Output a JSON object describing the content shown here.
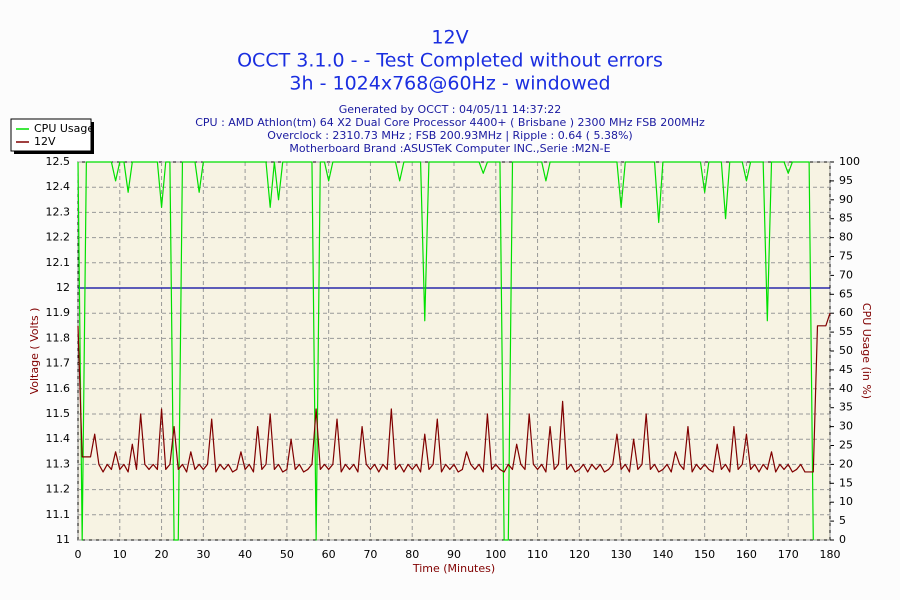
{
  "chart_data": {
    "type": "line",
    "title": "12V",
    "title_lines": [
      "OCCT 3.1.0 -  - Test Completed without errors",
      "3h - 1024x768@60Hz - windowed"
    ],
    "subtitle_lines": [
      "Generated by OCCT : 04/05/11 14:37:22",
      "CPU : AMD Athlon(tm) 64 X2 Dual Core Processor 4400+ ( Brisbane ) 2300 MHz FSB 200MHz",
      "Overclock : 2310.73 MHz ; FSB 200.93MHz | Ripple : 0.64 ( 5.38%)",
      "Motherboard Brand :ASUSTeK Computer INC.,Serie :M2N-E"
    ],
    "xlabel": "Time (Minutes)",
    "ylabel": "Voltage ( Volts )",
    "y2label": "CPU Usage (in %)",
    "x": [
      0,
      1,
      2,
      3,
      4,
      5,
      6,
      7,
      8,
      9,
      10,
      11,
      12,
      13,
      14,
      15,
      16,
      17,
      18,
      19,
      20,
      21,
      22,
      23,
      24,
      25,
      26,
      27,
      28,
      29,
      30,
      31,
      32,
      33,
      34,
      35,
      36,
      37,
      38,
      39,
      40,
      41,
      42,
      43,
      44,
      45,
      46,
      47,
      48,
      49,
      50,
      51,
      52,
      53,
      54,
      55,
      56,
      57,
      58,
      59,
      60,
      61,
      62,
      63,
      64,
      65,
      66,
      67,
      68,
      69,
      70,
      71,
      72,
      73,
      74,
      75,
      76,
      77,
      78,
      79,
      80,
      81,
      82,
      83,
      84,
      85,
      86,
      87,
      88,
      89,
      90,
      91,
      92,
      93,
      94,
      95,
      96,
      97,
      98,
      99,
      100,
      101,
      102,
      103,
      104,
      105,
      106,
      107,
      108,
      109,
      110,
      111,
      112,
      113,
      114,
      115,
      116,
      117,
      118,
      119,
      120,
      121,
      122,
      123,
      124,
      125,
      126,
      127,
      128,
      129,
      130,
      131,
      132,
      133,
      134,
      135,
      136,
      137,
      138,
      139,
      140,
      141,
      142,
      143,
      144,
      145,
      146,
      147,
      148,
      149,
      150,
      151,
      152,
      153,
      154,
      155,
      156,
      157,
      158,
      159,
      160,
      161,
      162,
      163,
      164,
      165,
      166,
      167,
      168,
      169,
      170,
      171,
      172,
      173,
      174,
      175,
      176,
      177,
      178,
      179,
      180
    ],
    "series": [
      {
        "name": "CPU Usage",
        "color": "#00e000",
        "axis": "y2",
        "values": [
          100,
          0,
          100,
          100,
          100,
          100,
          100,
          100,
          100,
          95,
          100,
          100,
          92,
          100,
          100,
          100,
          100,
          100,
          100,
          100,
          88,
          100,
          100,
          0,
          0,
          100,
          100,
          100,
          100,
          92,
          100,
          100,
          100,
          100,
          100,
          100,
          100,
          100,
          100,
          100,
          100,
          100,
          100,
          100,
          100,
          100,
          88,
          100,
          90,
          100,
          100,
          100,
          100,
          100,
          100,
          100,
          100,
          0,
          100,
          100,
          95,
          100,
          100,
          100,
          100,
          100,
          100,
          100,
          100,
          100,
          100,
          100,
          100,
          100,
          100,
          100,
          100,
          95,
          100,
          100,
          100,
          100,
          100,
          58,
          100,
          100,
          100,
          100,
          100,
          100,
          100,
          100,
          100,
          100,
          100,
          100,
          100,
          97,
          100,
          100,
          100,
          100,
          0,
          0,
          100,
          100,
          100,
          100,
          100,
          100,
          100,
          100,
          95,
          100,
          100,
          100,
          100,
          100,
          100,
          100,
          100,
          100,
          100,
          100,
          100,
          100,
          100,
          100,
          100,
          100,
          88,
          100,
          100,
          100,
          100,
          100,
          100,
          100,
          100,
          84,
          100,
          100,
          100,
          100,
          100,
          100,
          100,
          100,
          100,
          100,
          92,
          100,
          100,
          100,
          100,
          85,
          100,
          100,
          100,
          100,
          95,
          100,
          100,
          100,
          100,
          58,
          100,
          100,
          100,
          100,
          97,
          100,
          100,
          100,
          100,
          100,
          0,
          null,
          null,
          null,
          null
        ]
      },
      {
        "name": "12V",
        "color": "#800000",
        "values": [
          11.85,
          11.33,
          11.33,
          11.33,
          11.42,
          11.3,
          11.27,
          11.3,
          11.28,
          11.35,
          11.28,
          11.3,
          11.27,
          11.38,
          11.28,
          11.5,
          11.3,
          11.28,
          11.3,
          11.28,
          11.52,
          11.28,
          11.3,
          11.45,
          11.28,
          11.3,
          11.27,
          11.35,
          11.28,
          11.3,
          11.28,
          11.3,
          11.48,
          11.27,
          11.3,
          11.28,
          11.3,
          11.27,
          11.28,
          11.35,
          11.28,
          11.3,
          11.27,
          11.45,
          11.28,
          11.3,
          11.5,
          11.28,
          11.3,
          11.27,
          11.28,
          11.4,
          11.28,
          11.3,
          11.27,
          11.28,
          11.3,
          11.52,
          11.28,
          11.3,
          11.28,
          11.3,
          11.48,
          11.27,
          11.3,
          11.28,
          11.3,
          11.27,
          11.45,
          11.3,
          11.28,
          11.3,
          11.27,
          11.3,
          11.28,
          11.52,
          11.28,
          11.3,
          11.27,
          11.3,
          11.28,
          11.3,
          11.27,
          11.42,
          11.28,
          11.3,
          11.48,
          11.27,
          11.3,
          11.28,
          11.3,
          11.27,
          11.28,
          11.35,
          11.3,
          11.28,
          11.3,
          11.27,
          11.5,
          11.28,
          11.3,
          11.28,
          11.27,
          11.3,
          11.28,
          11.38,
          11.3,
          11.28,
          11.5,
          11.3,
          11.28,
          11.3,
          11.27,
          11.45,
          11.28,
          11.3,
          11.55,
          11.28,
          11.3,
          11.27,
          11.28,
          11.3,
          11.27,
          11.3,
          11.28,
          11.3,
          11.27,
          11.28,
          11.3,
          11.42,
          11.28,
          11.3,
          11.27,
          11.4,
          11.28,
          11.3,
          11.5,
          11.28,
          11.3,
          11.27,
          11.28,
          11.3,
          11.27,
          11.35,
          11.3,
          11.28,
          11.45,
          11.27,
          11.3,
          11.28,
          11.3,
          11.28,
          11.27,
          11.38,
          11.28,
          11.3,
          11.27,
          11.45,
          11.28,
          11.3,
          11.42,
          11.28,
          11.3,
          11.27,
          11.3,
          11.28,
          11.35,
          11.27,
          11.3,
          11.28,
          11.3,
          11.27,
          11.28,
          11.3,
          11.27,
          11.27,
          11.27,
          11.85,
          11.85,
          11.85,
          11.9
        ]
      }
    ],
    "reference_line": 12,
    "reference_color": "#0000a0",
    "xlim": [
      0,
      180
    ],
    "xticks": [
      0,
      10,
      20,
      30,
      40,
      50,
      60,
      70,
      80,
      90,
      100,
      110,
      120,
      130,
      140,
      150,
      160,
      170,
      180
    ],
    "ylim": [
      11,
      12.5
    ],
    "yticks": [
      11,
      11.1,
      11.2,
      11.3,
      11.4,
      11.5,
      11.6,
      11.7,
      11.8,
      11.9,
      12,
      12.1,
      12.2,
      12.3,
      12.4,
      12.5
    ],
    "y2lim": [
      0,
      100
    ],
    "y2ticks": [
      0,
      5,
      10,
      15,
      20,
      25,
      30,
      35,
      40,
      45,
      50,
      55,
      60,
      65,
      70,
      75,
      80,
      85,
      90,
      95,
      100
    ],
    "grid": true,
    "legend": "top-left"
  }
}
